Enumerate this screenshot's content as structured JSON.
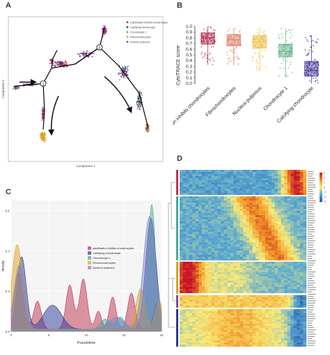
{
  "panels": {
    "A": {
      "label": "A",
      "xlabel": "Component 1",
      "ylabel": "Component 2",
      "legend": [
        {
          "name": "Calcification inhibits chondrocytes",
          "color": "#c81e3c"
        },
        {
          "name": "Calcifying chondrocyte",
          "color": "#2b3a93"
        },
        {
          "name": "Chondrocyte 1",
          "color": "#4aa79a"
        },
        {
          "name": "Fibrochondrocytes",
          "color": "#e0a21a"
        },
        {
          "name": "Nucleus pulposus",
          "color": "#7a4aa0"
        }
      ]
    },
    "B": {
      "label": "B"
    },
    "C": {
      "label": "C"
    },
    "D": {
      "label": "D"
    }
  },
  "chart_data": [
    {
      "panel": "B",
      "type": "box",
      "ylabel": "CytoTRACE score",
      "ylim": [
        0,
        1.0
      ],
      "yticks": [
        "0.0",
        "0.1",
        "0.2",
        "0.3",
        "0.4",
        "0.5",
        "0.6",
        "0.7",
        "0.8",
        "0.9",
        "1.0"
      ],
      "categories": [
        "Calcification inhibits chondrocytes",
        "Fibrochondrocytes",
        "Nucleus pulposus",
        "Chondrocyte 1",
        "Calcifying chondrocyte"
      ],
      "colors": [
        "#b5385c",
        "#e08a72",
        "#ecc14a",
        "#6cb58f",
        "#4b3d98"
      ],
      "boxes": [
        {
          "q1": 0.69,
          "median": 0.8,
          "q3": 0.89,
          "whislo": 0.33,
          "whishi": 1.0
        },
        {
          "q1": 0.66,
          "median": 0.77,
          "q3": 0.86,
          "whislo": 0.32,
          "whishi": 0.98
        },
        {
          "q1": 0.62,
          "median": 0.73,
          "q3": 0.84,
          "whislo": 0.23,
          "whishi": 0.98
        },
        {
          "q1": 0.47,
          "median": 0.56,
          "q3": 0.69,
          "whislo": 0.12,
          "whishi": 0.97
        },
        {
          "q1": 0.13,
          "median": 0.23,
          "q3": 0.39,
          "whislo": 0.0,
          "whishi": 0.85
        }
      ]
    },
    {
      "panel": "C",
      "type": "area",
      "xlabel": "Pseudotime",
      "ylabel": "density",
      "xlim": [
        0,
        20
      ],
      "ylim": [
        0,
        0.65
      ],
      "xticks": [
        "0",
        "5",
        "10",
        "15",
        "20"
      ],
      "yticks": [
        "0.0",
        "0.2",
        "0.4",
        "0.6"
      ],
      "series": [
        {
          "name": "calcification inhibits chondrocytes",
          "color": "#c0304e",
          "peaks": [
            [
              1.0,
              0.28,
              0.6
            ],
            [
              3.5,
              0.14,
              0.5
            ],
            [
              7.8,
              0.22,
              0.5
            ],
            [
              9.6,
              0.25,
              0.5
            ],
            [
              11.6,
              0.09,
              0.4
            ],
            [
              13.5,
              0.16,
              0.45
            ],
            [
              16.0,
              0.18,
              0.5
            ],
            [
              19.3,
              0.13,
              0.4
            ]
          ]
        },
        {
          "name": "Calcifying chondrocyte",
          "color": "#2b3a93",
          "peaks": [
            [
              1.4,
              0.36,
              0.6
            ],
            [
              5.5,
              0.12,
              1.2
            ],
            [
              18.6,
              0.55,
              0.7
            ]
          ]
        },
        {
          "name": "Chondrocyte 1",
          "color": "#4aa79a",
          "peaks": [
            [
              18.7,
              0.62,
              0.5
            ],
            [
              14.5,
              0.06,
              0.6
            ],
            [
              12.5,
              0.05,
              0.6
            ]
          ]
        },
        {
          "name": "Fibrochondrocytes",
          "color": "#e0a21a",
          "peaks": [
            [
              0.8,
              0.42,
              0.7
            ],
            [
              17.2,
              0.2,
              0.6
            ],
            [
              19.7,
              0.14,
              0.5
            ]
          ]
        },
        {
          "name": "Nucleus pulposus",
          "color": "#7a86c8",
          "peaks": [
            [
              1.1,
              0.32,
              0.7
            ],
            [
              18.4,
              0.56,
              0.8
            ],
            [
              14.0,
              0.06,
              1.0
            ]
          ]
        }
      ]
    },
    {
      "panel": "D",
      "type": "heatmap",
      "legend_ticks": [
        "3",
        "2",
        "1",
        "0",
        "-1",
        "-2",
        "-3"
      ]
    }
  ]
}
